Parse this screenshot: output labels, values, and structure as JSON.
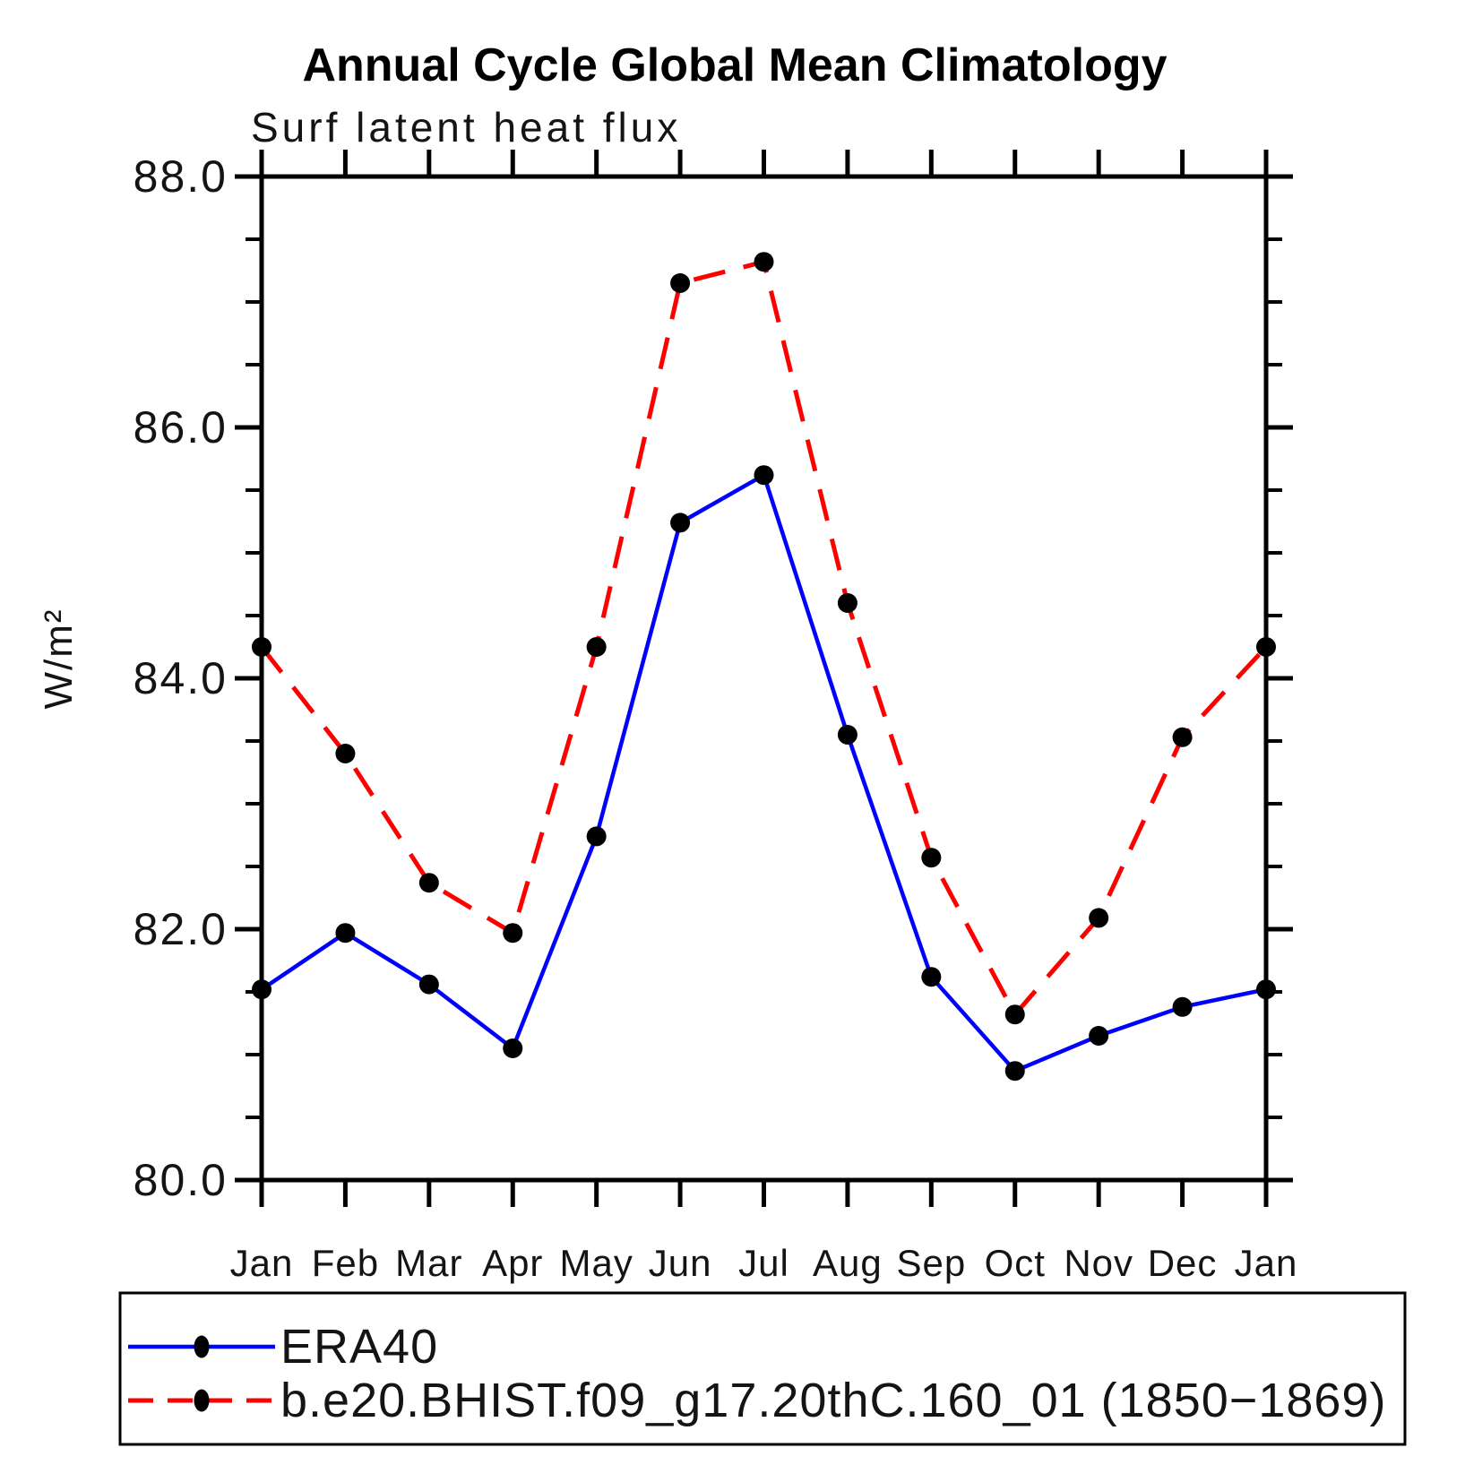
{
  "title": "Annual Cycle Global Mean Climatology",
  "subtitle": "Surf latent heat flux",
  "ylabel": "W/m²",
  "chart_data": {
    "type": "line",
    "categories": [
      "Jan",
      "Feb",
      "Mar",
      "Apr",
      "May",
      "Jun",
      "Jul",
      "Aug",
      "Sep",
      "Oct",
      "Nov",
      "Dec",
      "Jan"
    ],
    "series": [
      {
        "name": "ERA40",
        "color": "#0000ff",
        "line_style": "solid",
        "marker": "black-dot",
        "values": [
          81.52,
          81.97,
          81.56,
          81.05,
          82.74,
          85.24,
          85.62,
          83.55,
          81.62,
          80.87,
          81.15,
          81.38,
          81.52
        ]
      },
      {
        "name": "b.e20.BHIST.f09_g17.20thC.160_01 (1850−1869)",
        "color": "#ff0000",
        "line_style": "dashed",
        "marker": "black-dot",
        "values": [
          84.25,
          83.4,
          82.37,
          81.97,
          84.25,
          87.15,
          87.32,
          84.6,
          82.57,
          81.32,
          82.09,
          83.53,
          84.25
        ]
      }
    ],
    "ylim": [
      80.0,
      88.0
    ],
    "ytick_major_values": [
      80.0,
      82.0,
      84.0,
      86.0,
      88.0
    ],
    "ytick_labels": [
      "80.0",
      "82.0",
      "84.0",
      "86.0",
      "88.0"
    ],
    "ytick_minor_step": 0.5,
    "grid": false,
    "marker_color": "#000000",
    "axis_color": "#000000",
    "legend_position": "bottom"
  }
}
